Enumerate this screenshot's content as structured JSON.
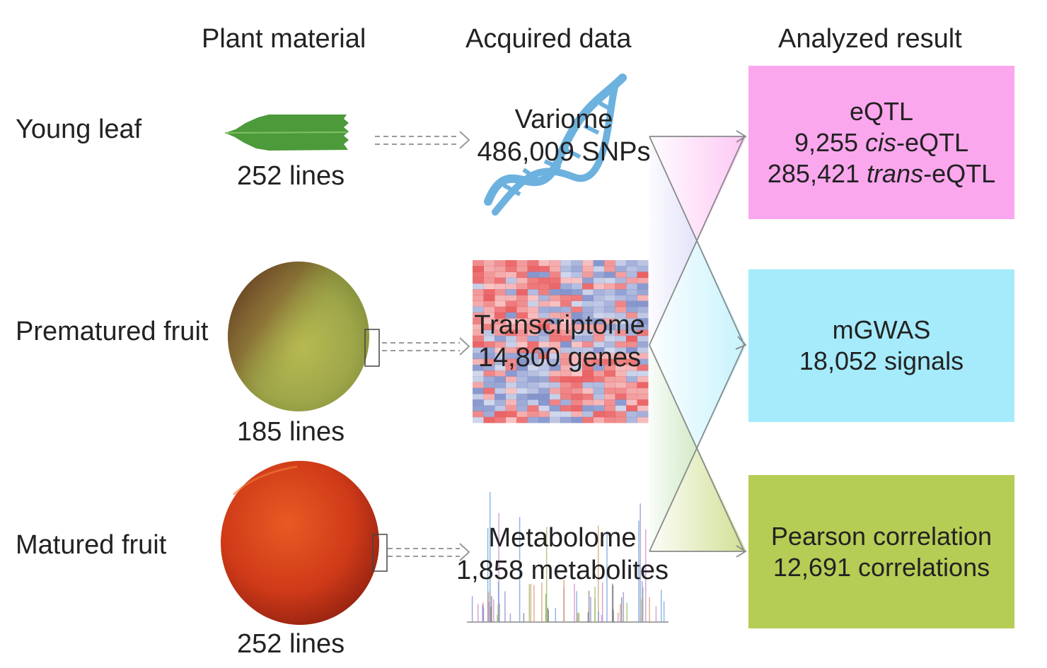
{
  "headers": {
    "plant_material": "Plant material",
    "acquired_data": "Acquired data",
    "analyzed_result": "Analyzed result"
  },
  "rows": [
    {
      "label": "Young leaf",
      "lines": "252 lines",
      "data_title": "Variome",
      "data_value": "486,009 SNPs"
    },
    {
      "label": "Prematured fruit",
      "lines": "185 lines",
      "data_title": "Transcriptome",
      "data_value": "14,800 genes"
    },
    {
      "label": "Matured fruit",
      "lines": "252 lines",
      "data_title": "Metabolome",
      "data_value": "1,858 metabolites"
    }
  ],
  "results": {
    "eqtl": {
      "title": "eQTL",
      "cis_count": "9,255 ",
      "cis_term": "cis",
      "cis_suffix": "-eQTL",
      "trans_count": "285,421 ",
      "trans_term": "trans",
      "trans_suffix": "-eQTL",
      "color": "#fba7ee"
    },
    "mgwas": {
      "title": "mGWAS",
      "value": "18,052 signals",
      "color": "#a6ebfb"
    },
    "pearson": {
      "title": "Pearson correlation",
      "value": "12,691 correlations",
      "color": "#b5cd55"
    }
  },
  "colors": {
    "heatmap_red": "#e8585a",
    "heatmap_blue": "#7d8ec9",
    "dna_blue": "#5ea9dc",
    "leaf_green": "#4d9a3a",
    "fruit_red": "#d5361a",
    "fruit_green": "#a9b04a"
  }
}
